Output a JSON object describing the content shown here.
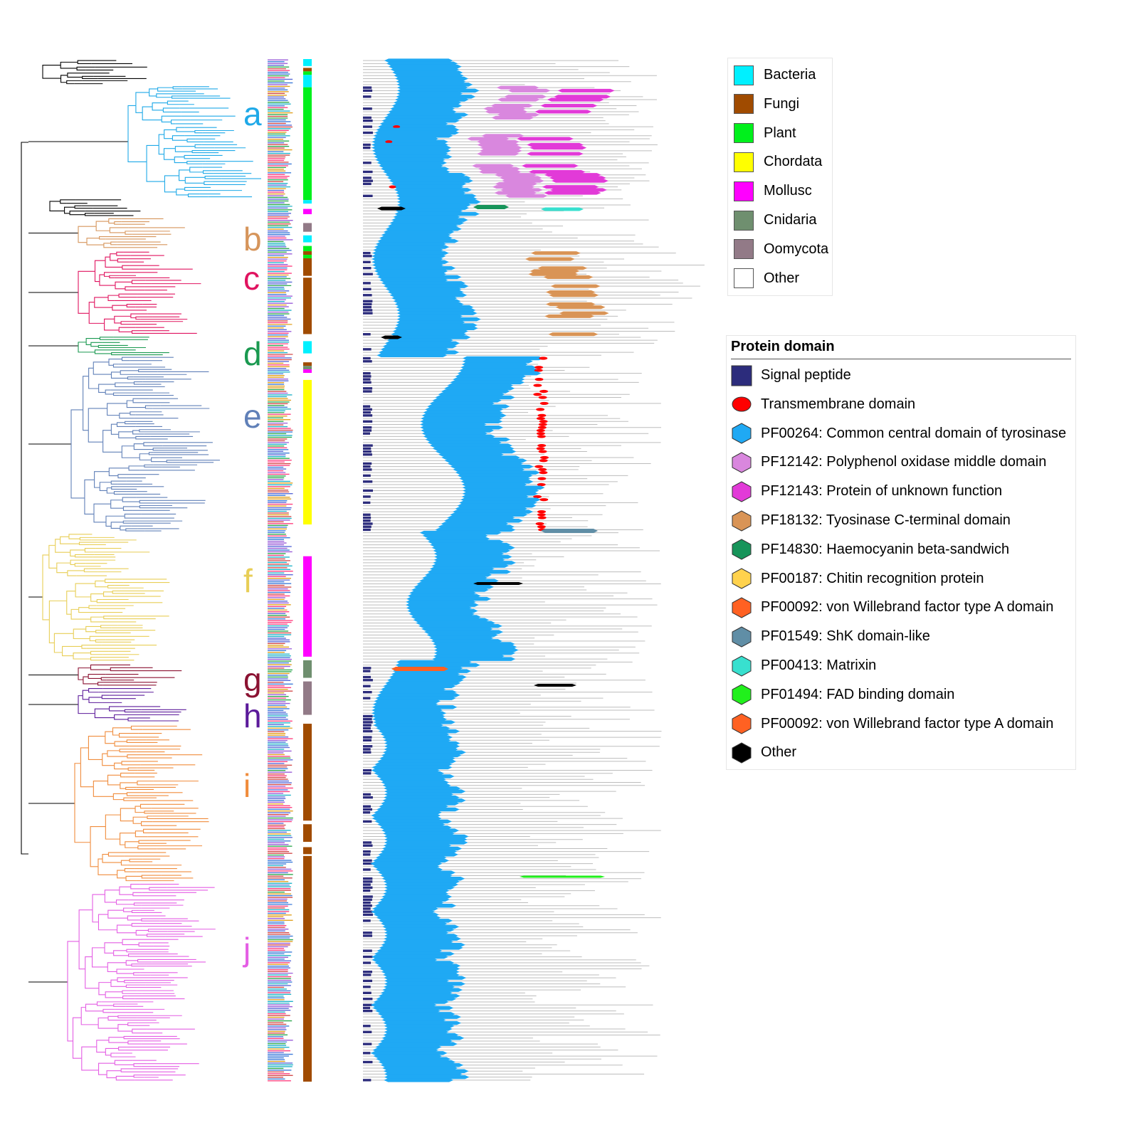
{
  "taxon_legend": {
    "items": [
      {
        "label": "Bacteria",
        "color": "#00f0ff"
      },
      {
        "label": "Fungi",
        "color": "#a04b00"
      },
      {
        "label": "Plant",
        "color": "#00f01c"
      },
      {
        "label": "Chordata",
        "color": "#ffff00"
      },
      {
        "label": "Mollusc",
        "color": "#ff00ff"
      },
      {
        "label": "Cnidaria",
        "color": "#6f8f6f"
      },
      {
        "label": "Oomycota",
        "color": "#927a87"
      },
      {
        "label": "Other",
        "color": "#ffffff"
      }
    ]
  },
  "domain_legend": {
    "title": "Protein domain",
    "items": [
      {
        "label": "Signal peptide",
        "color": "#2c2c7c",
        "shape": "square"
      },
      {
        "label": "Transmembrane domain",
        "color": "#ff0000",
        "shape": "ellipse"
      },
      {
        "label": "PF00264: Common central domain of tyrosinase",
        "color": "#1fa9f4",
        "shape": "hexagon"
      },
      {
        "label": "PF12142: Polyphenol oxidase middle domain",
        "color": "#d987de",
        "shape": "hexagon"
      },
      {
        "label": "PF12143: Protein of unknown function",
        "color": "#e23ad8",
        "shape": "hexagon"
      },
      {
        "label": "PF18132: Tyosinase C-terminal domain",
        "color": "#d99456",
        "shape": "hexagon"
      },
      {
        "label": "PF14830: Haemocyanin beta-sandwich",
        "color": "#17945a",
        "shape": "hexagon"
      },
      {
        "label": "PF00187: Chitin recognition protein",
        "color": "#ffd24d",
        "shape": "hexagon"
      },
      {
        "label": "PF00092: von Willebrand factor type A domain",
        "color": "#ff6122",
        "shape": "hexagon"
      },
      {
        "label": "PF01549: ShK domain-like",
        "color": "#608ea6",
        "shape": "hexagon"
      },
      {
        "label": "PF00413: Matrixin",
        "color": "#38e0cf",
        "shape": "hexagon"
      },
      {
        "label": "PF01494: FAD binding domain",
        "color": "#21f01c",
        "shape": "hexagon"
      },
      {
        "label": "PF00092: von Willebrand factor type A domain",
        "color": "#ff6122",
        "shape": "hexagon"
      },
      {
        "label": "Other",
        "color": "#000000",
        "shape": "hexagon"
      }
    ]
  },
  "clades": [
    {
      "label": "a",
      "color": "#1fa9e8"
    },
    {
      "label": "b",
      "color": "#d6955b"
    },
    {
      "label": "c",
      "color": "#e0135f"
    },
    {
      "label": "d",
      "color": "#1a9950"
    },
    {
      "label": "e",
      "color": "#6080b8"
    },
    {
      "label": "f",
      "color": "#e8ce56"
    },
    {
      "label": "g",
      "color": "#8b1232"
    },
    {
      "label": "h",
      "color": "#5b1a9a"
    },
    {
      "label": "i",
      "color": "#f08c3c"
    },
    {
      "label": "j",
      "color": "#e45ee4"
    }
  ],
  "taxon_strip_segments": [
    {
      "taxon": "Bacteria",
      "rows": 4
    },
    {
      "taxon": "Other",
      "rows": 1
    },
    {
      "taxon": "Fungi",
      "rows": 2
    },
    {
      "taxon": "Plant",
      "rows": 2
    },
    {
      "taxon": "Bacteria",
      "rows": 7
    },
    {
      "taxon": "Plant",
      "rows": 64
    },
    {
      "taxon": "Bacteria",
      "rows": 2
    },
    {
      "taxon": "Other",
      "rows": 3
    },
    {
      "taxon": "Mollusc",
      "rows": 3
    },
    {
      "taxon": "Other",
      "rows": 5
    },
    {
      "taxon": "Oomycota",
      "rows": 5
    },
    {
      "taxon": "Other",
      "rows": 2
    },
    {
      "taxon": "Bacteria",
      "rows": 4
    },
    {
      "taxon": "Other",
      "rows": 2
    },
    {
      "taxon": "Plant",
      "rows": 3
    },
    {
      "taxon": "Fungi",
      "rows": 2
    },
    {
      "taxon": "Plant",
      "rows": 2
    },
    {
      "taxon": "Fungi",
      "rows": 10
    },
    {
      "taxon": "Other",
      "rows": 1
    },
    {
      "taxon": "Fungi",
      "rows": 32
    },
    {
      "taxon": "Other",
      "rows": 4
    },
    {
      "taxon": "Bacteria",
      "rows": 7
    },
    {
      "taxon": "Other",
      "rows": 5
    },
    {
      "taxon": "Fungi",
      "rows": 2
    },
    {
      "taxon": "Cnidaria",
      "rows": 2
    },
    {
      "taxon": "Mollusc",
      "rows": 2
    },
    {
      "taxon": "Other",
      "rows": 4
    },
    {
      "taxon": "Chordata",
      "rows": 82
    },
    {
      "taxon": "Other",
      "rows": 18
    },
    {
      "taxon": "Mollusc",
      "rows": 57
    },
    {
      "taxon": "Other",
      "rows": 2
    },
    {
      "taxon": "Cnidaria",
      "rows": 10
    },
    {
      "taxon": "Other",
      "rows": 2
    },
    {
      "taxon": "Oomycota",
      "rows": 19
    },
    {
      "taxon": "Other",
      "rows": 5
    },
    {
      "taxon": "Fungi",
      "rows": 55
    },
    {
      "taxon": "Other",
      "rows": 2
    },
    {
      "taxon": "Fungi",
      "rows": 10
    },
    {
      "taxon": "Other",
      "rows": 3
    },
    {
      "taxon": "Fungi",
      "rows": 4
    },
    {
      "taxon": "Other",
      "rows": 1
    },
    {
      "taxon": "Fungi",
      "rows": 128
    }
  ]
}
